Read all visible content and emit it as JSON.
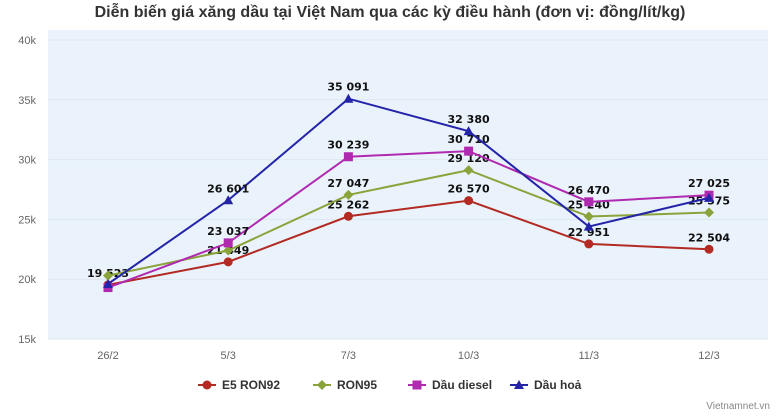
{
  "chart_data": {
    "type": "line",
    "title": "Diễn biến giá xăng dầu tại Việt Nam qua các kỳ điều hành (đơn vị: đồng/lít/kg)",
    "categories": [
      "26/2",
      "5/3",
      "7/3",
      "10/3",
      "11/3",
      "12/3"
    ],
    "ylim": [
      15000,
      40000
    ],
    "yticks": [
      "15k",
      "20k",
      "25k",
      "30k",
      "35k",
      "40k"
    ],
    "ytick_values": [
      15000,
      20000,
      25000,
      30000,
      35000,
      40000
    ],
    "grid": true,
    "legend_position": "bottom",
    "series": [
      {
        "name": "E5 RON92",
        "color": "#b22a22",
        "marker": "circle",
        "values": [
          19523,
          21449,
          25262,
          26570,
          22951,
          22504
        ],
        "labels": [
          "19 523",
          "21 449",
          "25 262",
          "26 570",
          "22 951",
          "22 504"
        ]
      },
      {
        "name": "RON95",
        "color": "#8aa33a",
        "marker": "diamond",
        "values": [
          20300,
          22400,
          27047,
          29120,
          25240,
          25575
        ],
        "labels": [
          null,
          null,
          "27 047",
          "29 120",
          "25 240",
          "25 575"
        ]
      },
      {
        "name": "Dầu diesel",
        "color": "#b02ab0",
        "marker": "square",
        "values": [
          19300,
          23037,
          30239,
          30710,
          26470,
          27025
        ],
        "labels": [
          null,
          "23 037",
          "30 239",
          "30 710",
          "26 470",
          "27 025"
        ]
      },
      {
        "name": "Dầu hoả",
        "color": "#2424a8",
        "marker": "triangle",
        "values": [
          19600,
          26601,
          35091,
          32380,
          24400,
          26800
        ],
        "labels": [
          null,
          "26 601",
          "35 091",
          "32 380",
          null,
          null
        ]
      }
    ]
  },
  "credit": "Vietnamnet.vn"
}
